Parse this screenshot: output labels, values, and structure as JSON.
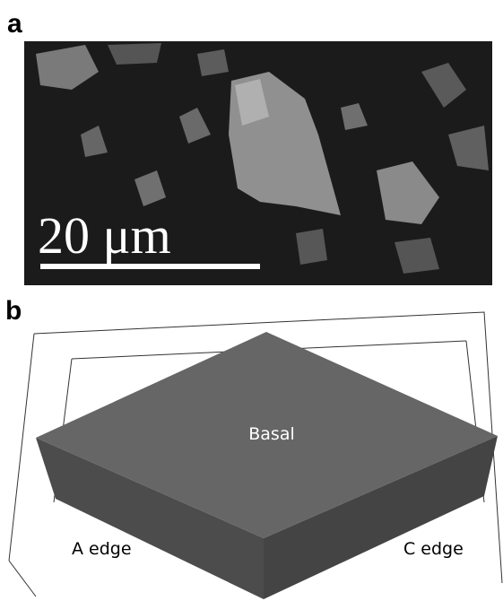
{
  "panel_a": {
    "label": "a",
    "scale_bar": "20 μm"
  },
  "panel_b": {
    "label": "b",
    "faces": {
      "top": "Basal",
      "left": "A edge",
      "right": "C edge"
    }
  }
}
